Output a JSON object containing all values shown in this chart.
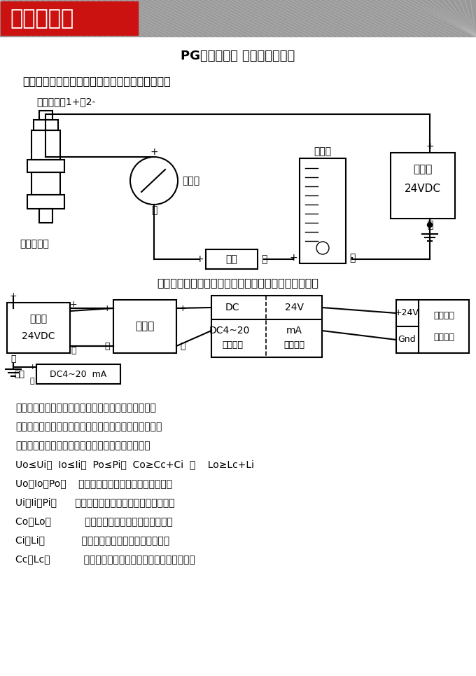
{
  "bg_color": "#FFFFFF",
  "banner_text": "安装示意图",
  "main_title": "PG压力变送器 现场连接示意图",
  "sec1_title": "一、非本安防爆型压力变送器可以用稳压电源供电",
  "sec2_title": "二、本安防爆型压力变送建议使用安全栅供电、见上图",
  "hesman_label": "赫斯曼接头1+、2-",
  "pressure_label": "压力变送器",
  "ammeter_label": "电流表",
  "load_label": "负载",
  "indicator_label": "指示仪",
  "power_label": "电　源\n24VDC",
  "power2_label": "电　源\n24VDC",
  "barrier_label": "安全栅",
  "intrinsic_label1": "本安型压",
  "intrinsic_label2": "力变送器",
  "output_label": "输出",
  "dc420_label": "DC4~20  mA",
  "safe_zone": "安全场所",
  "danger_zone": "危险场所",
  "gnd_label": "Gnd",
  "plus24v_label": "+24V",
  "text_lines": [
    "安全栅须取得防爆合格证，使用时应按其说明书的要求",
    "进行、安全栅防爆标志必须不低于压力变送器防爆标志。",
    "所配用安全栅参数必须符合本安系统参数匹配原则：",
    "Uo≤Ui、  Io≤Ii、  Po≤Pi、  Co≥Cc+Ci  和    Lo≥Lc+Li",
    "Uo、Io、Po：    安全栅的最大输出电压、电流和功率",
    "Ui、Ii、Pi：      压力变送器最大输入电压、电流和功率",
    "Co、Lo：           安全栅允许的最大外部电容和电感",
    "Ci、Li：            压力变送器的最大外部电容和电感",
    "Cc、Lc：           两者之间连接电缆允许总的分布电容和电感"
  ]
}
